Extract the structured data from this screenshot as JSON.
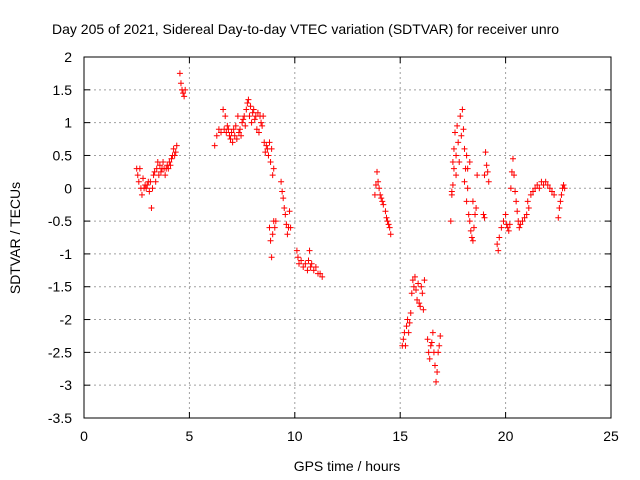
{
  "chart_data": {
    "type": "scatter",
    "title": "Day 205 of 2021, Sidereal Day-to-day VTEC variation (SDTVAR) for receiver unro",
    "xlabel": "GPS time / hours",
    "ylabel": "SDTVAR / TECUs",
    "xlim": [
      0,
      25
    ],
    "ylim": [
      -3.5,
      2
    ],
    "xticks": [
      0,
      5,
      10,
      15,
      20,
      25
    ],
    "xtick_labels": [
      "0",
      "5",
      "10",
      "15",
      "20",
      "25"
    ],
    "yticks": [
      2,
      1.5,
      1,
      0.5,
      0,
      -0.5,
      -1,
      -1.5,
      -2,
      -2.5,
      -3,
      -3.5
    ],
    "ytick_labels": [
      "2",
      "1.5",
      "1",
      "0.5",
      "0",
      "-0.5",
      "-1",
      "-1.5",
      "-2",
      "-2.5",
      "-3",
      "-3.5"
    ],
    "grid": true,
    "marker": "+",
    "marker_color": "#ff0000",
    "series": [
      {
        "name": "SDTVAR",
        "points": [
          [
            2.5,
            0.3
          ],
          [
            2.55,
            0.2
          ],
          [
            2.6,
            0.1
          ],
          [
            2.65,
            0.3
          ],
          [
            2.7,
            0.0
          ],
          [
            2.75,
            -0.1
          ],
          [
            2.8,
            0.15
          ],
          [
            2.85,
            0.0
          ],
          [
            2.9,
            0.05
          ],
          [
            2.95,
            0.0
          ],
          [
            3.0,
            0.05
          ],
          [
            3.05,
            0.1
          ],
          [
            3.1,
            -0.05
          ],
          [
            3.15,
            0.1
          ],
          [
            3.2,
            -0.3
          ],
          [
            3.25,
            0.0
          ],
          [
            3.3,
            0.2
          ],
          [
            3.35,
            0.25
          ],
          [
            3.4,
            0.1
          ],
          [
            3.45,
            0.3
          ],
          [
            3.5,
            0.4
          ],
          [
            3.55,
            0.2
          ],
          [
            3.6,
            0.35
          ],
          [
            3.65,
            0.25
          ],
          [
            3.7,
            0.3
          ],
          [
            3.75,
            0.4
          ],
          [
            3.8,
            0.3
          ],
          [
            3.85,
            0.2
          ],
          [
            3.9,
            0.3
          ],
          [
            3.95,
            0.35
          ],
          [
            4.0,
            0.3
          ],
          [
            4.05,
            0.4
          ],
          [
            4.1,
            0.35
          ],
          [
            4.15,
            0.45
          ],
          [
            4.2,
            0.5
          ],
          [
            4.25,
            0.6
          ],
          [
            4.3,
            0.5
          ],
          [
            4.35,
            0.55
          ],
          [
            4.4,
            0.65
          ],
          [
            4.55,
            1.75
          ],
          [
            4.6,
            1.6
          ],
          [
            4.65,
            1.5
          ],
          [
            4.7,
            1.45
          ],
          [
            4.75,
            1.4
          ],
          [
            4.8,
            1.5
          ],
          [
            6.2,
            0.65
          ],
          [
            6.3,
            0.8
          ],
          [
            6.4,
            0.9
          ],
          [
            6.5,
            0.85
          ],
          [
            6.6,
            1.2
          ],
          [
            6.65,
            0.9
          ],
          [
            6.7,
            1.1
          ],
          [
            6.75,
            0.85
          ],
          [
            6.8,
            0.95
          ],
          [
            6.85,
            0.9
          ],
          [
            6.9,
            0.8
          ],
          [
            6.95,
            0.75
          ],
          [
            7.0,
            0.85
          ],
          [
            7.05,
            0.7
          ],
          [
            7.1,
            0.9
          ],
          [
            7.15,
            0.8
          ],
          [
            7.2,
            0.95
          ],
          [
            7.25,
            0.75
          ],
          [
            7.3,
            1.1
          ],
          [
            7.35,
            0.85
          ],
          [
            7.4,
            0.9
          ],
          [
            7.45,
            0.8
          ],
          [
            7.5,
            1.0
          ],
          [
            7.55,
            1.05
          ],
          [
            7.6,
            1.1
          ],
          [
            7.65,
            0.95
          ],
          [
            7.7,
            1.2
          ],
          [
            7.75,
            1.3
          ],
          [
            7.8,
            1.35
          ],
          [
            7.85,
            1.1
          ],
          [
            7.9,
            1.25
          ],
          [
            7.95,
            1.0
          ],
          [
            8.0,
            1.15
          ],
          [
            8.05,
            1.2
          ],
          [
            8.1,
            1.05
          ],
          [
            8.15,
            1.1
          ],
          [
            8.2,
            0.9
          ],
          [
            8.25,
            1.15
          ],
          [
            8.3,
            0.85
          ],
          [
            8.35,
            1.1
          ],
          [
            8.4,
            1.0
          ],
          [
            8.45,
            0.95
          ],
          [
            8.5,
            1.1
          ],
          [
            8.55,
            0.7
          ],
          [
            8.6,
            0.55
          ],
          [
            8.65,
            0.65
          ],
          [
            8.7,
            0.6
          ],
          [
            8.75,
            0.5
          ],
          [
            8.8,
            0.7
          ],
          [
            8.85,
            0.4
          ],
          [
            8.9,
            0.6
          ],
          [
            8.95,
            0.2
          ],
          [
            9.0,
            0.3
          ],
          [
            8.8,
            -0.6
          ],
          [
            8.85,
            -0.8
          ],
          [
            8.9,
            -1.05
          ],
          [
            8.95,
            -0.7
          ],
          [
            9.0,
            -0.5
          ],
          [
            9.05,
            -0.6
          ],
          [
            9.1,
            -0.5
          ],
          [
            9.35,
            0.1
          ],
          [
            9.4,
            -0.05
          ],
          [
            9.45,
            -0.15
          ],
          [
            9.5,
            -0.3
          ],
          [
            9.55,
            -0.4
          ],
          [
            9.6,
            -0.55
          ],
          [
            9.65,
            -0.7
          ],
          [
            9.7,
            -0.6
          ],
          [
            9.75,
            -0.35
          ],
          [
            9.8,
            -0.6
          ],
          [
            10.1,
            -0.95
          ],
          [
            10.15,
            -1.05
          ],
          [
            10.2,
            -1.15
          ],
          [
            10.3,
            -1.1
          ],
          [
            10.4,
            -1.2
          ],
          [
            10.5,
            -1.15
          ],
          [
            10.6,
            -1.25
          ],
          [
            10.65,
            -1.1
          ],
          [
            10.7,
            -0.95
          ],
          [
            10.75,
            -1.2
          ],
          [
            10.8,
            -1.15
          ],
          [
            10.9,
            -1.25
          ],
          [
            11.0,
            -1.2
          ],
          [
            11.1,
            -1.3
          ],
          [
            11.2,
            -1.3
          ],
          [
            11.3,
            -1.35
          ],
          [
            13.8,
            -0.1
          ],
          [
            13.85,
            0.05
          ],
          [
            13.9,
            0.25
          ],
          [
            13.95,
            0.1
          ],
          [
            14.0,
            0.0
          ],
          [
            14.05,
            -0.1
          ],
          [
            14.1,
            -0.15
          ],
          [
            14.15,
            -0.2
          ],
          [
            14.2,
            -0.25
          ],
          [
            14.3,
            -0.35
          ],
          [
            14.35,
            -0.45
          ],
          [
            14.4,
            -0.5
          ],
          [
            14.45,
            -0.55
          ],
          [
            14.5,
            -0.6
          ],
          [
            14.55,
            -0.7
          ],
          [
            15.1,
            -2.4
          ],
          [
            15.15,
            -2.3
          ],
          [
            15.2,
            -2.2
          ],
          [
            15.25,
            -2.4
          ],
          [
            15.3,
            -2.1
          ],
          [
            15.35,
            -2.0
          ],
          [
            15.4,
            -2.2
          ],
          [
            15.45,
            -2.05
          ],
          [
            15.5,
            -1.9
          ],
          [
            15.55,
            -1.6
          ],
          [
            15.6,
            -1.4
          ],
          [
            15.65,
            -1.5
          ],
          [
            15.7,
            -1.35
          ],
          [
            15.75,
            -1.55
          ],
          [
            15.8,
            -1.7
          ],
          [
            15.85,
            -1.45
          ],
          [
            15.9,
            -1.75
          ],
          [
            15.95,
            -1.8
          ],
          [
            16.0,
            -1.5
          ],
          [
            16.05,
            -1.6
          ],
          [
            16.1,
            -1.85
          ],
          [
            16.15,
            -1.4
          ],
          [
            16.3,
            -2.3
          ],
          [
            16.35,
            -2.5
          ],
          [
            16.4,
            -2.6
          ],
          [
            16.45,
            -2.4
          ],
          [
            16.5,
            -2.35
          ],
          [
            16.55,
            -2.2
          ],
          [
            16.6,
            -2.5
          ],
          [
            16.65,
            -2.7
          ],
          [
            16.7,
            -2.95
          ],
          [
            16.75,
            -2.8
          ],
          [
            16.8,
            -2.5
          ],
          [
            16.85,
            -2.4
          ],
          [
            16.9,
            -2.25
          ],
          [
            17.4,
            -0.5
          ],
          [
            17.45,
            -0.1
          ],
          [
            17.5,
            0.4
          ],
          [
            17.55,
            0.6
          ],
          [
            17.6,
            0.85
          ],
          [
            17.65,
            0.5
          ],
          [
            17.7,
            0.95
          ],
          [
            17.75,
            0.7
          ],
          [
            17.8,
            0.4
          ],
          [
            17.85,
            1.1
          ],
          [
            17.9,
            0.8
          ],
          [
            17.95,
            1.2
          ],
          [
            18.0,
            0.9
          ],
          [
            18.05,
            0.6
          ],
          [
            18.1,
            0.3
          ],
          [
            18.15,
            -0.2
          ],
          [
            18.2,
            0.0
          ],
          [
            18.25,
            -0.4
          ],
          [
            18.3,
            -0.5
          ],
          [
            18.35,
            -0.65
          ],
          [
            18.4,
            -0.75
          ],
          [
            18.45,
            -0.8
          ],
          [
            18.5,
            -0.6
          ],
          [
            18.55,
            -0.4
          ],
          [
            18.6,
            -0.3
          ],
          [
            18.65,
            0.2
          ],
          [
            17.45,
            -0.05
          ],
          [
            17.5,
            0.05
          ],
          [
            17.55,
            0.3
          ],
          [
            17.65,
            0.2
          ],
          [
            18.05,
            0.1
          ],
          [
            18.15,
            0.5
          ],
          [
            18.2,
            0.3
          ],
          [
            18.3,
            0.4
          ],
          [
            18.45,
            -0.2
          ],
          [
            19.0,
            0.2
          ],
          [
            19.05,
            0.55
          ],
          [
            19.1,
            0.35
          ],
          [
            19.15,
            0.25
          ],
          [
            19.2,
            0.1
          ],
          [
            18.95,
            -0.4
          ],
          [
            19.0,
            -0.45
          ],
          [
            19.6,
            -0.85
          ],
          [
            19.65,
            -0.95
          ],
          [
            19.7,
            -0.75
          ],
          [
            19.8,
            -0.6
          ],
          [
            19.9,
            -0.5
          ],
          [
            20.0,
            -0.4
          ],
          [
            20.05,
            -0.55
          ],
          [
            20.1,
            -0.6
          ],
          [
            20.15,
            -0.65
          ],
          [
            20.2,
            -0.55
          ],
          [
            20.25,
            0.0
          ],
          [
            20.3,
            0.25
          ],
          [
            20.35,
            0.45
          ],
          [
            20.4,
            0.2
          ],
          [
            20.45,
            -0.05
          ],
          [
            20.5,
            -0.2
          ],
          [
            20.55,
            -0.35
          ],
          [
            20.6,
            -0.5
          ],
          [
            20.65,
            -0.6
          ],
          [
            20.7,
            -0.55
          ],
          [
            20.8,
            -0.5
          ],
          [
            20.9,
            -0.45
          ],
          [
            21.0,
            -0.4
          ],
          [
            21.05,
            -0.2
          ],
          [
            21.1,
            -0.3
          ],
          [
            21.2,
            -0.1
          ],
          [
            21.3,
            -0.05
          ],
          [
            21.4,
            0.0
          ],
          [
            21.5,
            0.05
          ],
          [
            21.6,
            0.0
          ],
          [
            21.7,
            0.1
          ],
          [
            21.8,
            0.05
          ],
          [
            21.9,
            0.1
          ],
          [
            22.0,
            0.05
          ],
          [
            22.1,
            0.0
          ],
          [
            22.2,
            -0.05
          ],
          [
            22.3,
            -0.1
          ],
          [
            22.5,
            -0.45
          ],
          [
            22.55,
            -0.3
          ],
          [
            22.6,
            -0.2
          ],
          [
            22.65,
            -0.1
          ],
          [
            22.7,
            0.0
          ],
          [
            22.75,
            0.05
          ],
          [
            22.8,
            0.0
          ]
        ]
      }
    ]
  }
}
